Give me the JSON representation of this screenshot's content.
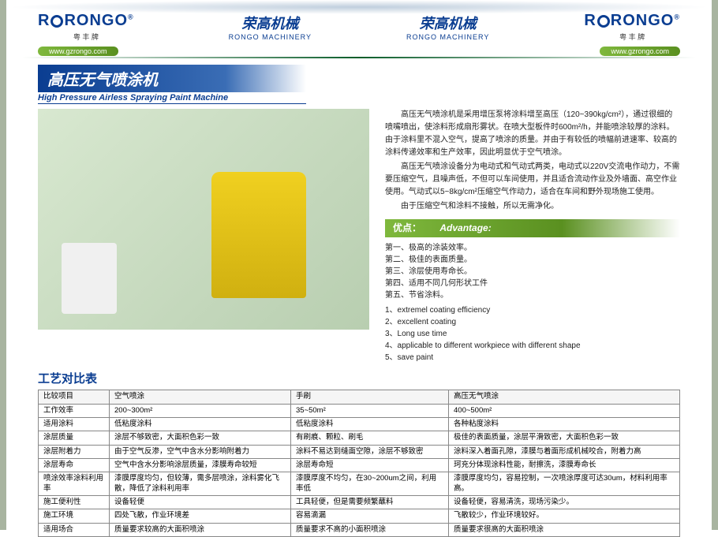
{
  "header": {
    "logo_text": "RONGO",
    "logo_sub_left": "粤 丰 牌",
    "logo_sub_right": "粤 丰 牌",
    "brand_cn": "荣高机械",
    "brand_en": "RONGO MACHINERY",
    "url": "www.gzrongo.com"
  },
  "title": {
    "cn": "高压无气喷涂机",
    "en": "High Pressure Airless Spraying Paint Machine"
  },
  "description": {
    "p1": "高压无气喷涂机是采用增压泵将涂料增至高压（120~390kg/cm²），通过很细的喷嘴喷出，使涂料形成扇形雾状。在喷大型板件时600m²/h，并能喷涂较厚的涂料。由于涂料里不混入空气，提高了喷涂的质量。并由于有较低的喷幅前进速率、较高的涂料传递效率和生产效率，因此明显优于空气喷涂。",
    "p2": "高压无气喷涂设备分为电动式和气动式两类，电动式以220V交流电作动力，不需要压缩空气，且噪声低，不但可以车间使用，并且适合流动作业及外墙面、高空作业使用。气动式以5~8kg/cm²压缩空气作动力，适合在车间和野外现场施工使用。",
    "p3": "由于压缩空气和涂料不接触，所以无需净化。"
  },
  "advantages": {
    "header_cn": "优点：",
    "header_en": "Advantage:",
    "items_cn": [
      "第一、极高的涂装效率。",
      "第二、极佳的表面质量。",
      "第三、涂层使用寿命长。",
      "第四、适用不同几何形状工件",
      "第五、节省涂料。"
    ],
    "items_en": [
      "1、extremel coating efficiency",
      "2、excellent coating",
      "3、Long use time",
      "4、applicable to different workpiece with different shape",
      "5、save paint"
    ]
  },
  "comparison": {
    "title": "工艺对比表",
    "columns": [
      "比较项目",
      "空气喷涂",
      "手刷",
      "高压无气喷涂"
    ],
    "rows": [
      [
        "工作效率",
        "200~300m²",
        "35~50m²",
        "400~500m²"
      ],
      [
        "适用涂料",
        "低粘度涂料",
        "低粘度涂料",
        "各种粘度涂料"
      ],
      [
        "涂层质量",
        "涂层不够致密，大面积色彩一致",
        "有刷痕、颗粒、刷毛",
        "极佳的表面质量，涂层平滑致密，大面积色彩一致"
      ],
      [
        "涂层附着力",
        "由于空气反渗，空气中含水分影响附着力",
        "涂料不易达到缝面空隙，涂层不够致密",
        "涂料深入着面孔隙，漆膜与着面形成机械咬合，附着力高"
      ],
      [
        "涂层寿命",
        "空气中含水分影响涂层质量，漆膜寿命较短",
        "涂层寿命短",
        "珂充分体现涂料性能，耐擦洗，漆膜寿命长"
      ],
      [
        "喷涂效率涂料利用率",
        "漆膜厚度均匀，但较薄，需多层喷涂，涂料雾化飞散，降低了涂料利用率",
        "漆膜厚度不均匀，在30~200um之间，利用率低",
        "漆膜厚度均匀，容易控制，一次喷涂厚度可达30um，材料利用率高。"
      ],
      [
        "施工便利性",
        "设备轻便",
        "工具轻便，但是需要频繁蘸料",
        "设备轻便，容易清洗，现场污染少。"
      ],
      [
        "施工环境",
        "四处飞散，作业环境差",
        "容易滴漏",
        "飞散较少，作业环境较好。"
      ],
      [
        "适用场合",
        "质量要求较高的大面积喷涂",
        "质量要求不高的小面积喷涂",
        "质量要求很高的大面积喷涂"
      ]
    ]
  },
  "colors": {
    "brand_blue": "#0a3d91",
    "accent_green": "#7fb83d",
    "border_gray": "#888888"
  }
}
